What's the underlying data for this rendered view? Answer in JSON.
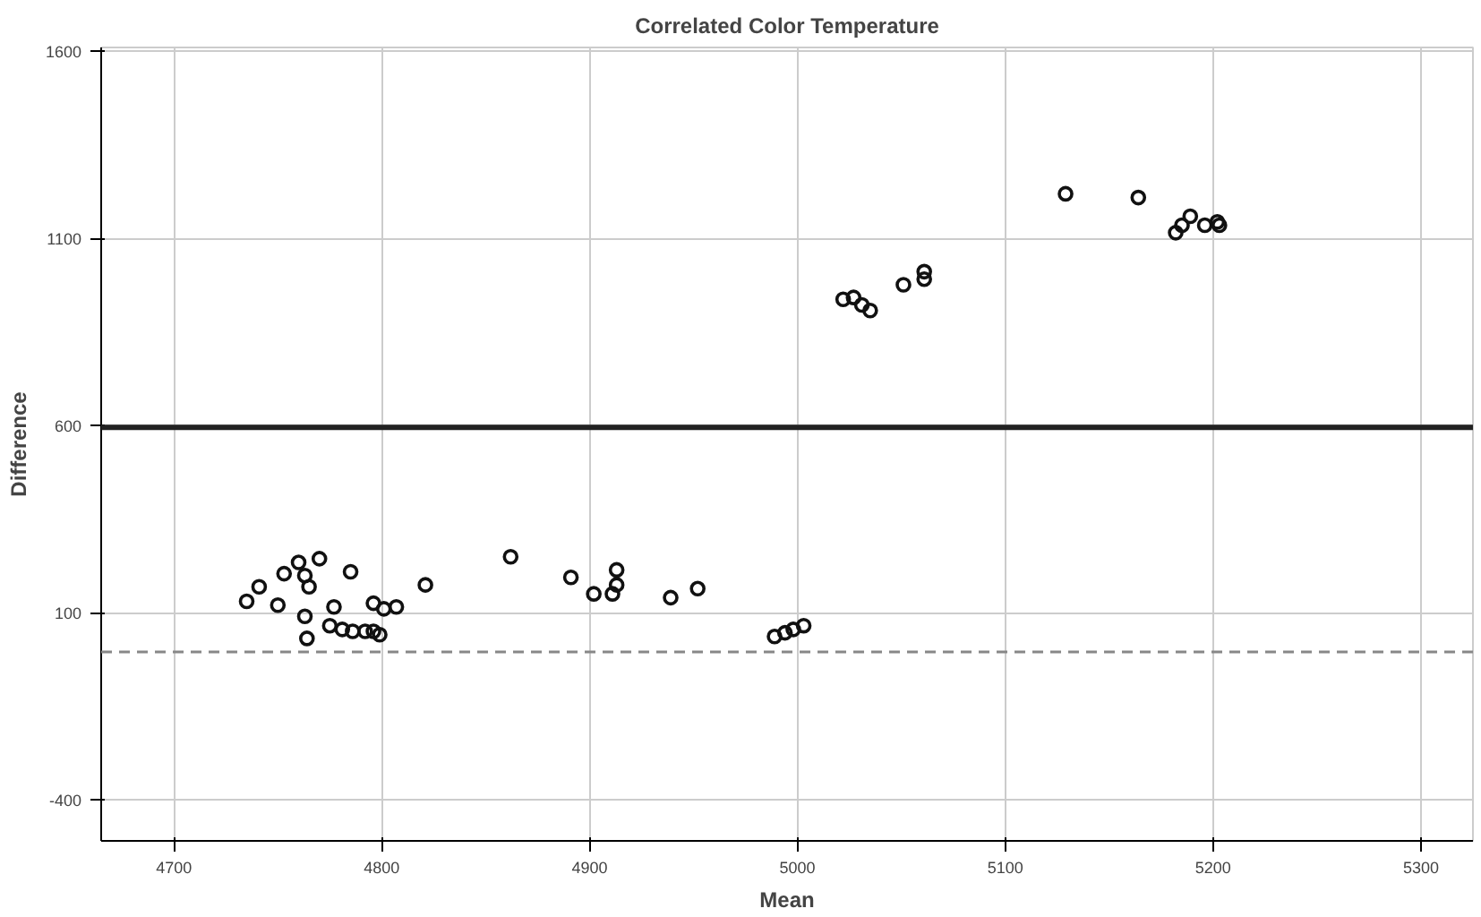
{
  "chart_data": {
    "type": "scatter",
    "title": "Correlated Color Temperature",
    "xlabel": "Mean",
    "ylabel": "Difference",
    "xlim": [
      4665,
      5325
    ],
    "ylim": [
      -510,
      1610
    ],
    "xticks": [
      4700,
      4800,
      4900,
      5000,
      5100,
      5200,
      5300
    ],
    "yticks": [
      -400,
      100,
      600,
      1100,
      1600
    ],
    "grid": true,
    "marker": "circle",
    "ref_lines": [
      {
        "axis": "y",
        "value": 595,
        "color": "#222222",
        "line_style": "solid"
      },
      {
        "axis": "y",
        "value": -5,
        "color": "#888888",
        "line_style": "dashed"
      }
    ],
    "series": [
      {
        "color": "#111111",
        "x": [
          4735,
          4741,
          4750,
          4753,
          4760,
          4763,
          4765,
          4770,
          4763,
          4764,
          4777,
          4775,
          4781,
          4786,
          4785,
          4792,
          4796,
          4796,
          4799,
          4801,
          4807,
          4821,
          4862,
          4891,
          4902,
          4911,
          4913,
          4913,
          4939,
          4952,
          4989,
          4994,
          4998,
          5003,
          5022,
          5027,
          5031,
          5035,
          5051,
          5061,
          5061,
          5129,
          5164,
          5182,
          5185,
          5189,
          5196,
          5202,
          5203
        ],
        "values": [
          130,
          169,
          120,
          204,
          234,
          199,
          169,
          244,
          90,
          31,
          115,
          65,
          55,
          50,
          209,
          50,
          125,
          50,
          41,
          110,
          115,
          174,
          249,
          194,
          150,
          150,
          174,
          214,
          140,
          164,
          36,
          46,
          55,
          65,
          937,
          942,
          922,
          907,
          976,
          1011,
          991,
          1219,
          1209,
          1115,
          1135,
          1159,
          1135,
          1144,
          1135
        ]
      }
    ]
  }
}
